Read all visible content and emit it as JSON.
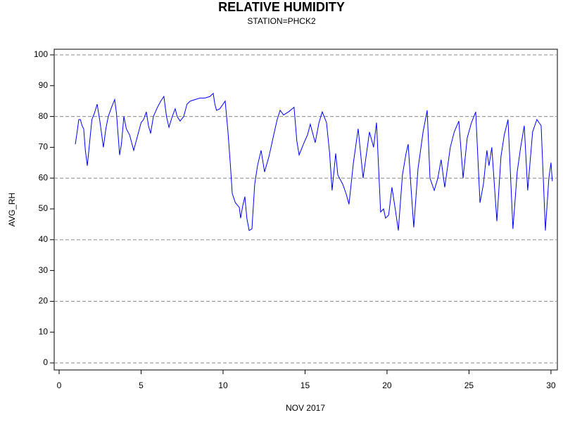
{
  "chart_data": {
    "type": "line",
    "title": "RELATIVE HUMIDITY",
    "subtitle": "STATION=PHCK2",
    "x_label": "NOV 2017",
    "y_label": "AVG_RH",
    "xlim": [
      -0.3,
      30.39
    ],
    "ylim": [
      -2.28,
      101.83
    ],
    "xticks": [
      0,
      5,
      10,
      15,
      20,
      25,
      30
    ],
    "yticks": [
      0,
      10,
      20,
      30,
      40,
      50,
      60,
      70,
      80,
      90,
      100
    ],
    "ygrid": [
      0,
      20,
      40,
      60,
      80,
      100
    ],
    "series": [
      {
        "name": "AVG_RH",
        "color": "#0000ff",
        "x": [
          0.99,
          1.1,
          1.2,
          1.3,
          1.4,
          1.5,
          1.6,
          1.72,
          1.85,
          2.0,
          2.15,
          2.32,
          2.5,
          2.7,
          2.85,
          3.0,
          3.2,
          3.39,
          3.5,
          3.69,
          3.8,
          3.95,
          4.1,
          4.3,
          4.55,
          4.75,
          5.0,
          5.15,
          5.32,
          5.45,
          5.58,
          5.75,
          6.0,
          6.2,
          6.39,
          6.55,
          6.7,
          6.9,
          7.08,
          7.2,
          7.38,
          7.6,
          7.8,
          8.0,
          8.3,
          8.6,
          8.9,
          9.2,
          9.4,
          9.5,
          9.6,
          9.8,
          10.0,
          10.13,
          10.3,
          10.45,
          10.56,
          10.75,
          10.99,
          11.07,
          11.2,
          11.33,
          11.45,
          11.59,
          11.76,
          11.93,
          12.1,
          12.32,
          12.53,
          12.8,
          13.13,
          13.3,
          13.48,
          13.69,
          13.99,
          14.33,
          14.5,
          14.64,
          14.9,
          15.15,
          15.32,
          15.62,
          15.85,
          16.05,
          16.31,
          16.5,
          16.65,
          16.87,
          17.0,
          17.3,
          17.5,
          17.68,
          17.95,
          18.24,
          18.54,
          18.93,
          19.18,
          19.36,
          19.61,
          19.79,
          19.91,
          20.1,
          20.3,
          20.5,
          20.69,
          20.94,
          21.16,
          21.29,
          21.45,
          21.63,
          21.89,
          22.2,
          22.45,
          22.62,
          22.88,
          23.1,
          23.3,
          23.52,
          23.86,
          24.1,
          24.38,
          24.64,
          24.89,
          25.15,
          25.41,
          25.67,
          25.88,
          26.09,
          26.22,
          26.39,
          26.7,
          26.95,
          27.15,
          27.38,
          27.68,
          27.94,
          28.15,
          28.37,
          28.58,
          28.88,
          29.14,
          29.4,
          29.66,
          29.87,
          30.0,
          30.08
        ],
        "values": [
          71,
          75,
          79,
          79,
          77,
          76,
          69,
          64,
          71,
          79,
          81,
          84,
          78,
          70,
          76,
          80,
          83,
          85.5,
          81,
          67.5,
          71,
          80,
          76,
          74,
          69,
          73,
          78,
          79,
          81.5,
          77,
          74.5,
          80,
          83,
          85,
          86.5,
          80,
          76.5,
          80,
          82.5,
          80,
          78.5,
          80,
          84,
          85,
          85.5,
          86,
          86,
          86.5,
          87.5,
          84,
          82,
          82.5,
          84,
          85,
          75,
          64,
          55,
          52,
          50.5,
          47,
          51,
          54,
          47,
          43,
          43.5,
          58,
          64,
          69,
          62,
          67,
          75,
          79,
          82,
          80.5,
          81.5,
          83,
          72,
          67.5,
          71,
          74,
          77.5,
          71.5,
          78,
          81.5,
          78,
          68,
          56,
          68,
          61,
          58,
          55,
          51.5,
          65,
          76,
          60,
          75,
          70,
          78,
          49,
          50,
          47,
          48,
          57,
          50,
          43,
          61,
          68,
          71,
          58,
          44,
          63,
          75,
          82,
          60,
          56,
          60,
          66,
          57,
          70,
          75,
          78.5,
          60,
          73,
          78,
          81.5,
          52,
          58,
          69,
          64,
          70,
          46,
          67,
          74,
          79,
          43.5,
          62,
          70,
          77,
          56,
          75,
          79,
          77,
          43,
          60,
          65,
          59
        ]
      }
    ]
  }
}
